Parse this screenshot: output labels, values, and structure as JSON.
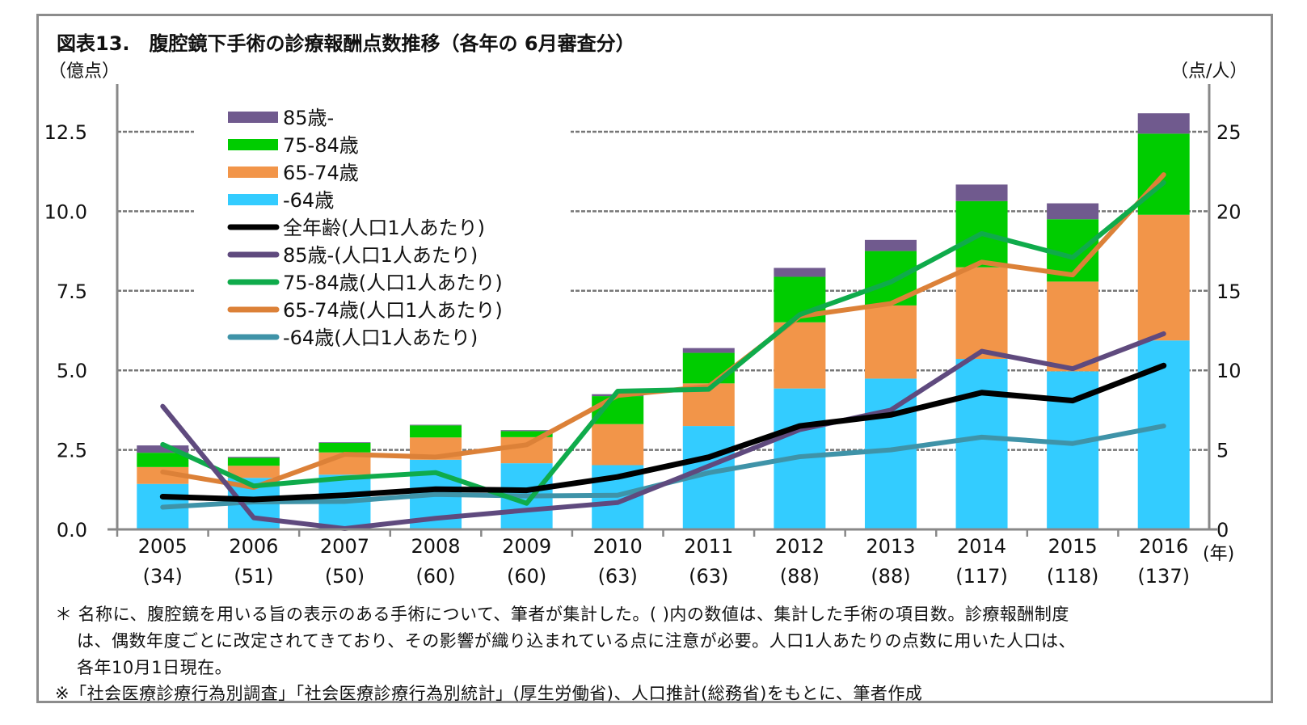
{
  "chart_data": {
    "type": "bar+line",
    "title": "図表13.　腹腔鏡下手術の診療報酬点数推移（各年の 6月審査分）",
    "ylabel": "（億点）",
    "y2label": "（点/人）",
    "xunit": "(年)",
    "categories": [
      "2005",
      "2006",
      "2007",
      "2008",
      "2009",
      "2010",
      "2011",
      "2012",
      "2013",
      "2014",
      "2015",
      "2016"
    ],
    "category_counts": [
      "(34)",
      "(51)",
      "(50)",
      "(60)",
      "(60)",
      "(63)",
      "(63)",
      "(88)",
      "(88)",
      "(117)",
      "(118)",
      "(137)"
    ],
    "ylim": [
      0,
      14
    ],
    "y2lim": [
      0,
      28
    ],
    "yticks": [
      "0.0",
      "2.5",
      "5.0",
      "7.5",
      "10.0",
      "12.5"
    ],
    "yticks_values": [
      0,
      2.5,
      5,
      7.5,
      10,
      12.5
    ],
    "y2ticks": [
      "0",
      "5",
      "10",
      "15",
      "20",
      "25"
    ],
    "y2ticks_values": [
      0,
      5,
      10,
      15,
      20,
      25
    ],
    "grid": true,
    "legend_position": "top-left",
    "bar_series": [
      {
        "name": "-64歳",
        "color": "#33ccff",
        "values": [
          1.43,
          1.62,
          1.72,
          2.19,
          2.08,
          2.02,
          3.25,
          4.43,
          4.74,
          5.36,
          4.97,
          5.94
        ]
      },
      {
        "name": "65-74歳",
        "color": "#f29549",
        "values": [
          0.53,
          0.38,
          0.7,
          0.7,
          0.82,
          1.29,
          1.34,
          2.08,
          2.3,
          2.88,
          2.82,
          3.95
        ]
      },
      {
        "name": "75-84歳",
        "color": "#00cc00",
        "values": [
          0.45,
          0.25,
          0.3,
          0.38,
          0.19,
          0.88,
          0.96,
          1.43,
          1.71,
          2.08,
          1.96,
          2.55
        ]
      },
      {
        "name": "85歳-",
        "color": "#705a8e",
        "values": [
          0.23,
          0.03,
          0.02,
          0.02,
          0.03,
          0.06,
          0.15,
          0.28,
          0.35,
          0.52,
          0.5,
          0.64
        ]
      }
    ],
    "line_series": [
      {
        "name": "全年齢(人口1人あたり)",
        "color": "#000000",
        "values": [
          2.06,
          1.88,
          2.15,
          2.53,
          2.46,
          3.3,
          4.54,
          6.5,
          7.2,
          8.6,
          8.1,
          10.3
        ]
      },
      {
        "name": "85歳-(人口1人あたり)",
        "color": "#5f4a7e",
        "values": [
          7.74,
          0.73,
          0.05,
          0.7,
          1.21,
          1.69,
          3.98,
          6.27,
          7.5,
          11.2,
          10.1,
          12.3
        ]
      },
      {
        "name": "75-84歳(人口1人あたり)",
        "color": "#0fab4b",
        "values": [
          5.34,
          2.73,
          3.23,
          3.57,
          1.64,
          8.69,
          8.81,
          13.5,
          15.55,
          18.6,
          17.1,
          21.8
        ]
      },
      {
        "name": "65-74歳(人口1人あたり)",
        "color": "#dc8138",
        "values": [
          3.61,
          2.64,
          4.72,
          4.55,
          5.32,
          8.42,
          8.98,
          13.4,
          14.2,
          16.8,
          16.0,
          22.3
        ]
      },
      {
        "name": "-64歳(人口1人あたり)",
        "color": "#3f93a8",
        "values": [
          1.4,
          1.73,
          1.76,
          2.2,
          2.1,
          2.15,
          3.56,
          4.57,
          5.0,
          5.8,
          5.4,
          6.5
        ]
      }
    ],
    "legend_order": [
      "85歳-",
      "75-84歳",
      "65-74歳",
      "-64歳",
      "全年齢(人口1人あたり)",
      "85歳-(人口1人あたり)",
      "75-84歳(人口1人あたり)",
      "65-74歳(人口1人あたり)",
      "-64歳(人口1人あたり)"
    ]
  },
  "notes": {
    "line1": "＊ 名称に、腹腔鏡を用いる旨の表示のある手術について、筆者が集計した。( )内の数値は、集計した手術の項目数。診療報酬制度",
    "line2": "は、偶数年度ごとに改定されてきており、その影響が織り込まれている点に注意が必要。人口1人あたりの点数に用いた人口は、",
    "line3": "各年10月1日現在。",
    "source": "※「社会医療診療行為別調査」「社会医療診療行為別統計」(厚生労働省)、人口推計(総務省)をもとに、筆者作成"
  }
}
